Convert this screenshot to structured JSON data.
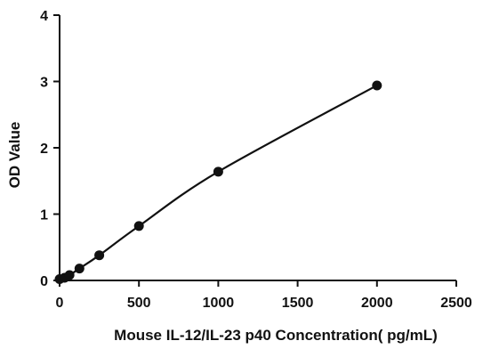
{
  "chart_data": {
    "type": "scatter",
    "title": "",
    "xlabel": "Mouse IL-12/IL-23 p40 Concentration( pg/mL)",
    "ylabel": "OD Value",
    "xlim": [
      0,
      2500
    ],
    "ylim": [
      0,
      4
    ],
    "x_ticks": [
      0,
      500,
      1000,
      1500,
      2000,
      2500
    ],
    "y_ticks": [
      0,
      1,
      2,
      3,
      4
    ],
    "grid": false,
    "legend": "none",
    "series": [
      {
        "x": [
          0,
          31.25,
          62.5,
          125,
          250,
          500,
          1000,
          2000
        ],
        "y": [
          0.02,
          0.04,
          0.08,
          0.18,
          0.38,
          0.82,
          1.64,
          2.94
        ],
        "fit": "smooth curve through points",
        "color": "#111111"
      }
    ]
  }
}
